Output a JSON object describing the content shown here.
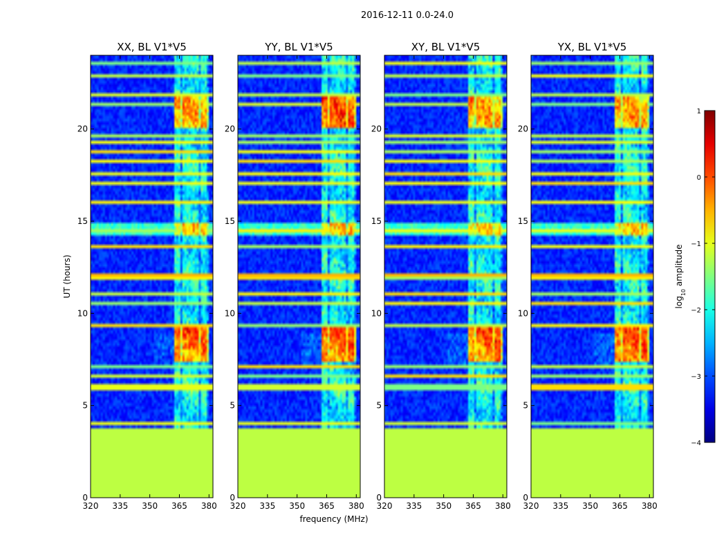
{
  "chart_data": {
    "type": "heatmap",
    "suptitle": "2016-12-11 0.0-24.0",
    "xlabel": "frequency (MHz)",
    "ylabel": "UT (hours)",
    "xlim": [
      320,
      382
    ],
    "ylim": [
      0,
      24
    ],
    "xticks": [
      320,
      335,
      350,
      365,
      380
    ],
    "yticks": [
      0,
      5,
      10,
      15,
      20
    ],
    "panels": [
      {
        "title": "XX, BL V1*V5",
        "pol": "XX"
      },
      {
        "title": "YY, BL V1*V5",
        "pol": "YY"
      },
      {
        "title": "XY, BL V1*V5",
        "pol": "XY"
      },
      {
        "title": "YX, BL V1*V5",
        "pol": "YX"
      }
    ],
    "no_data_hours": [
      0,
      3.7
    ],
    "no_data_value": -1.2,
    "background_value": -3.2,
    "strong_band_mhz": [
      362,
      380
    ],
    "bright_hours": [
      [
        7.4,
        9.2
      ],
      [
        20.0,
        21.7
      ],
      [
        14.2,
        14.9
      ]
    ],
    "rfi_hours": [
      4.0,
      6.0,
      6.6,
      7.1,
      9.4,
      10.5,
      11.0,
      12.0,
      13.7,
      14.5,
      16.1,
      17.0,
      17.6,
      18.3,
      18.8,
      19.3,
      19.7,
      21.3,
      21.8,
      22.9,
      23.5
    ],
    "colorbar": {
      "label": "log10 amplitude",
      "label_main": "log",
      "label_sub": "10",
      "label_rest": " amplitude",
      "range": [
        -4,
        1
      ],
      "ticks": [
        1,
        0,
        -1,
        -2,
        -3,
        -4
      ],
      "tick_labels": [
        "1",
        "0",
        "−1",
        "−2",
        "−3",
        "−4"
      ],
      "colormap": "jet"
    }
  }
}
